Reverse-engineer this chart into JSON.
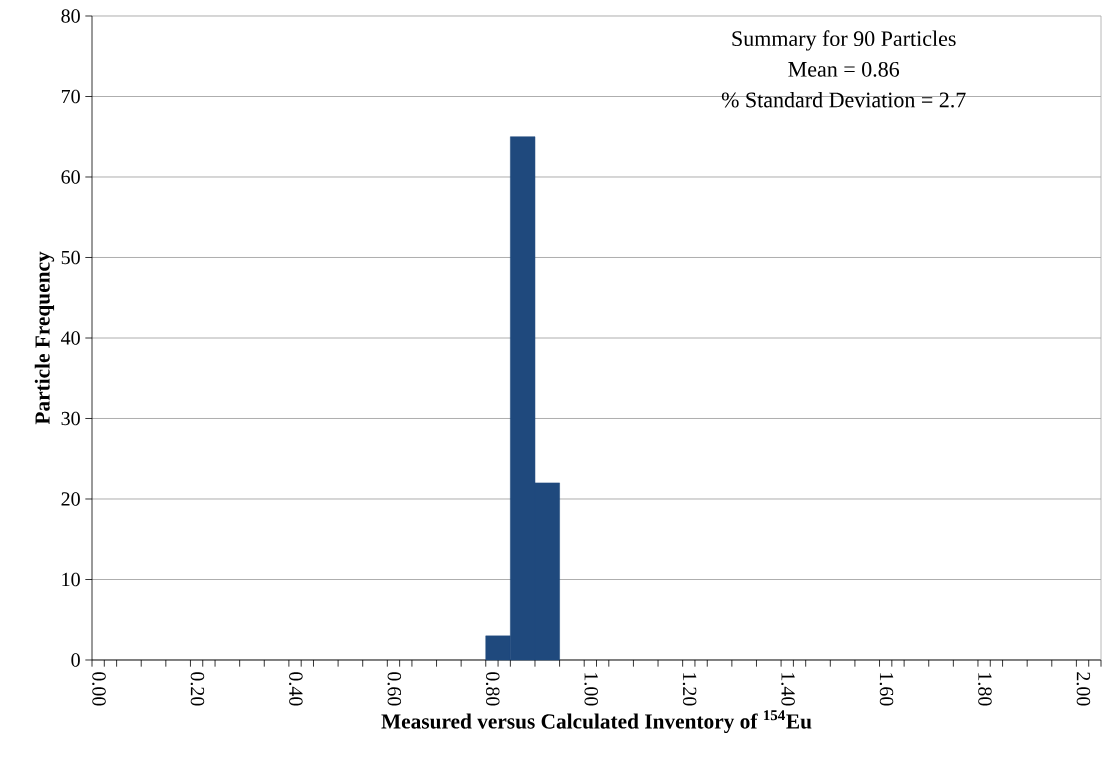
{
  "chart_data": {
    "type": "histogram",
    "xlabel": "Measured versus Calculated Inventory of $^{154}$Eu",
    "ylabel": "Particle Frequency",
    "annotations": [
      "Summary for 90 Particles",
      "Mean = 0.86",
      "% Standard Deviation = 2.7"
    ],
    "bins": [
      0.775,
      0.825,
      0.875,
      0.925
    ],
    "values": [
      3,
      65,
      22
    ],
    "color": "#1f497d",
    "xlim": [
      -0.025,
      2.025
    ],
    "xticks": [
      {
        "value": 0,
        "label": "0.00"
      },
      {
        "value": 0.2,
        "label": "0.20"
      },
      {
        "value": 0.4,
        "label": "0.40"
      },
      {
        "value": 0.6,
        "label": "0.60"
      },
      {
        "value": 0.8,
        "label": "0.80"
      },
      {
        "value": 1.0,
        "label": "1.00"
      },
      {
        "value": 1.2,
        "label": "1.20"
      },
      {
        "value": 1.4,
        "label": "1.40"
      },
      {
        "value": 1.6,
        "label": "1.60"
      },
      {
        "value": 1.8,
        "label": "1.80"
      },
      {
        "value": 2.0,
        "label": "2.00"
      },
      {
        "value": -0.025,
        "label": null
      },
      {
        "value": 0.025,
        "label": null
      },
      {
        "value": 0.075,
        "label": null
      },
      {
        "value": 0.125,
        "label": null
      },
      {
        "value": 0.175,
        "label": null
      },
      {
        "value": 0.225,
        "label": null
      },
      {
        "value": 0.275,
        "label": null
      },
      {
        "value": 0.325,
        "label": null
      },
      {
        "value": 0.375,
        "label": null
      },
      {
        "value": 0.425,
        "label": null
      },
      {
        "value": 0.475,
        "label": null
      },
      {
        "value": 0.525,
        "label": null
      },
      {
        "value": 0.575,
        "label": null
      },
      {
        "value": 0.625,
        "label": null
      },
      {
        "value": 0.675,
        "label": null
      },
      {
        "value": 0.725,
        "label": null
      },
      {
        "value": 0.775,
        "label": null
      },
      {
        "value": 0.825,
        "label": null
      },
      {
        "value": 0.875,
        "label": null
      },
      {
        "value": 0.925,
        "label": null
      },
      {
        "value": 0.975,
        "label": null
      },
      {
        "value": 1.025,
        "label": null
      },
      {
        "value": 1.075,
        "label": null
      },
      {
        "value": 1.125,
        "label": null
      },
      {
        "value": 1.175,
        "label": null
      },
      {
        "value": 1.225,
        "label": null
      },
      {
        "value": 1.275,
        "label": null
      },
      {
        "value": 1.325,
        "label": null
      },
      {
        "value": 1.375,
        "label": null
      },
      {
        "value": 1.425,
        "label": null
      },
      {
        "value": 1.475,
        "label": null
      },
      {
        "value": 1.525,
        "label": null
      },
      {
        "value": 1.575,
        "label": null
      },
      {
        "value": 1.625,
        "label": null
      },
      {
        "value": 1.675,
        "label": null
      },
      {
        "value": 1.725,
        "label": null
      },
      {
        "value": 1.775,
        "label": null
      },
      {
        "value": 1.825,
        "label": null
      },
      {
        "value": 1.875,
        "label": null
      },
      {
        "value": 1.925,
        "label": null
      },
      {
        "value": 1.975,
        "label": null
      },
      {
        "value": 2.025,
        "label": null
      }
    ],
    "ylim": [
      0,
      80
    ],
    "yticks": [
      0,
      10,
      20,
      30,
      40,
      50,
      60,
      70,
      80
    ],
    "grid": "y"
  }
}
